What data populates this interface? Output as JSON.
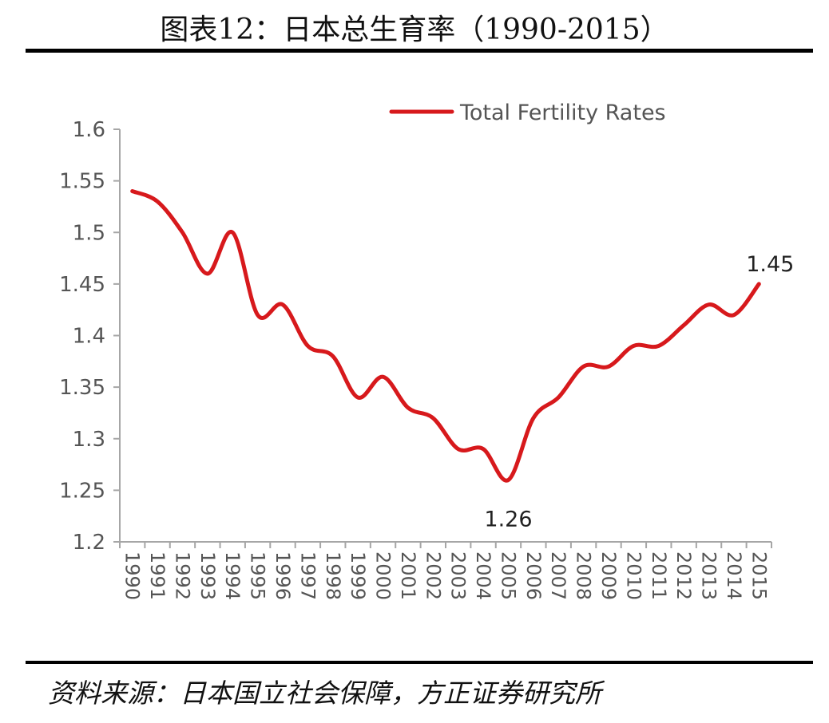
{
  "header": {
    "title": "图表12：日本总生育率（1990-2015）"
  },
  "footer": {
    "source": "资料来源：日本国立社会保障，方正证券研究所"
  },
  "colors": {
    "line": "#d7191c",
    "axis": "#a6a6a6",
    "text": "#555555"
  },
  "chart_data": {
    "type": "line",
    "x": [
      "1990",
      "1991",
      "1992",
      "1993",
      "1994",
      "1995",
      "1996",
      "1997",
      "1998",
      "1999",
      "2000",
      "2001",
      "2002",
      "2003",
      "2004",
      "2005",
      "2006",
      "2007",
      "2008",
      "2009",
      "2010",
      "2011",
      "2012",
      "2013",
      "2014",
      "2015"
    ],
    "series": [
      {
        "name": "Total Fertility Rates",
        "values": [
          1.54,
          1.53,
          1.5,
          1.46,
          1.5,
          1.42,
          1.43,
          1.39,
          1.38,
          1.34,
          1.36,
          1.33,
          1.32,
          1.29,
          1.29,
          1.26,
          1.32,
          1.34,
          1.37,
          1.37,
          1.39,
          1.39,
          1.41,
          1.43,
          1.42,
          1.45
        ]
      }
    ],
    "ylim": [
      1.2,
      1.6
    ],
    "yticks": [
      "1.2",
      "1.25",
      "1.3",
      "1.35",
      "1.4",
      "1.45",
      "1.5",
      "1.55",
      "1.6"
    ],
    "annotations": [
      {
        "x": "2005",
        "label": "1.26"
      },
      {
        "x": "2015",
        "label": "1.45"
      }
    ],
    "legend": "top-center",
    "grid": false
  }
}
